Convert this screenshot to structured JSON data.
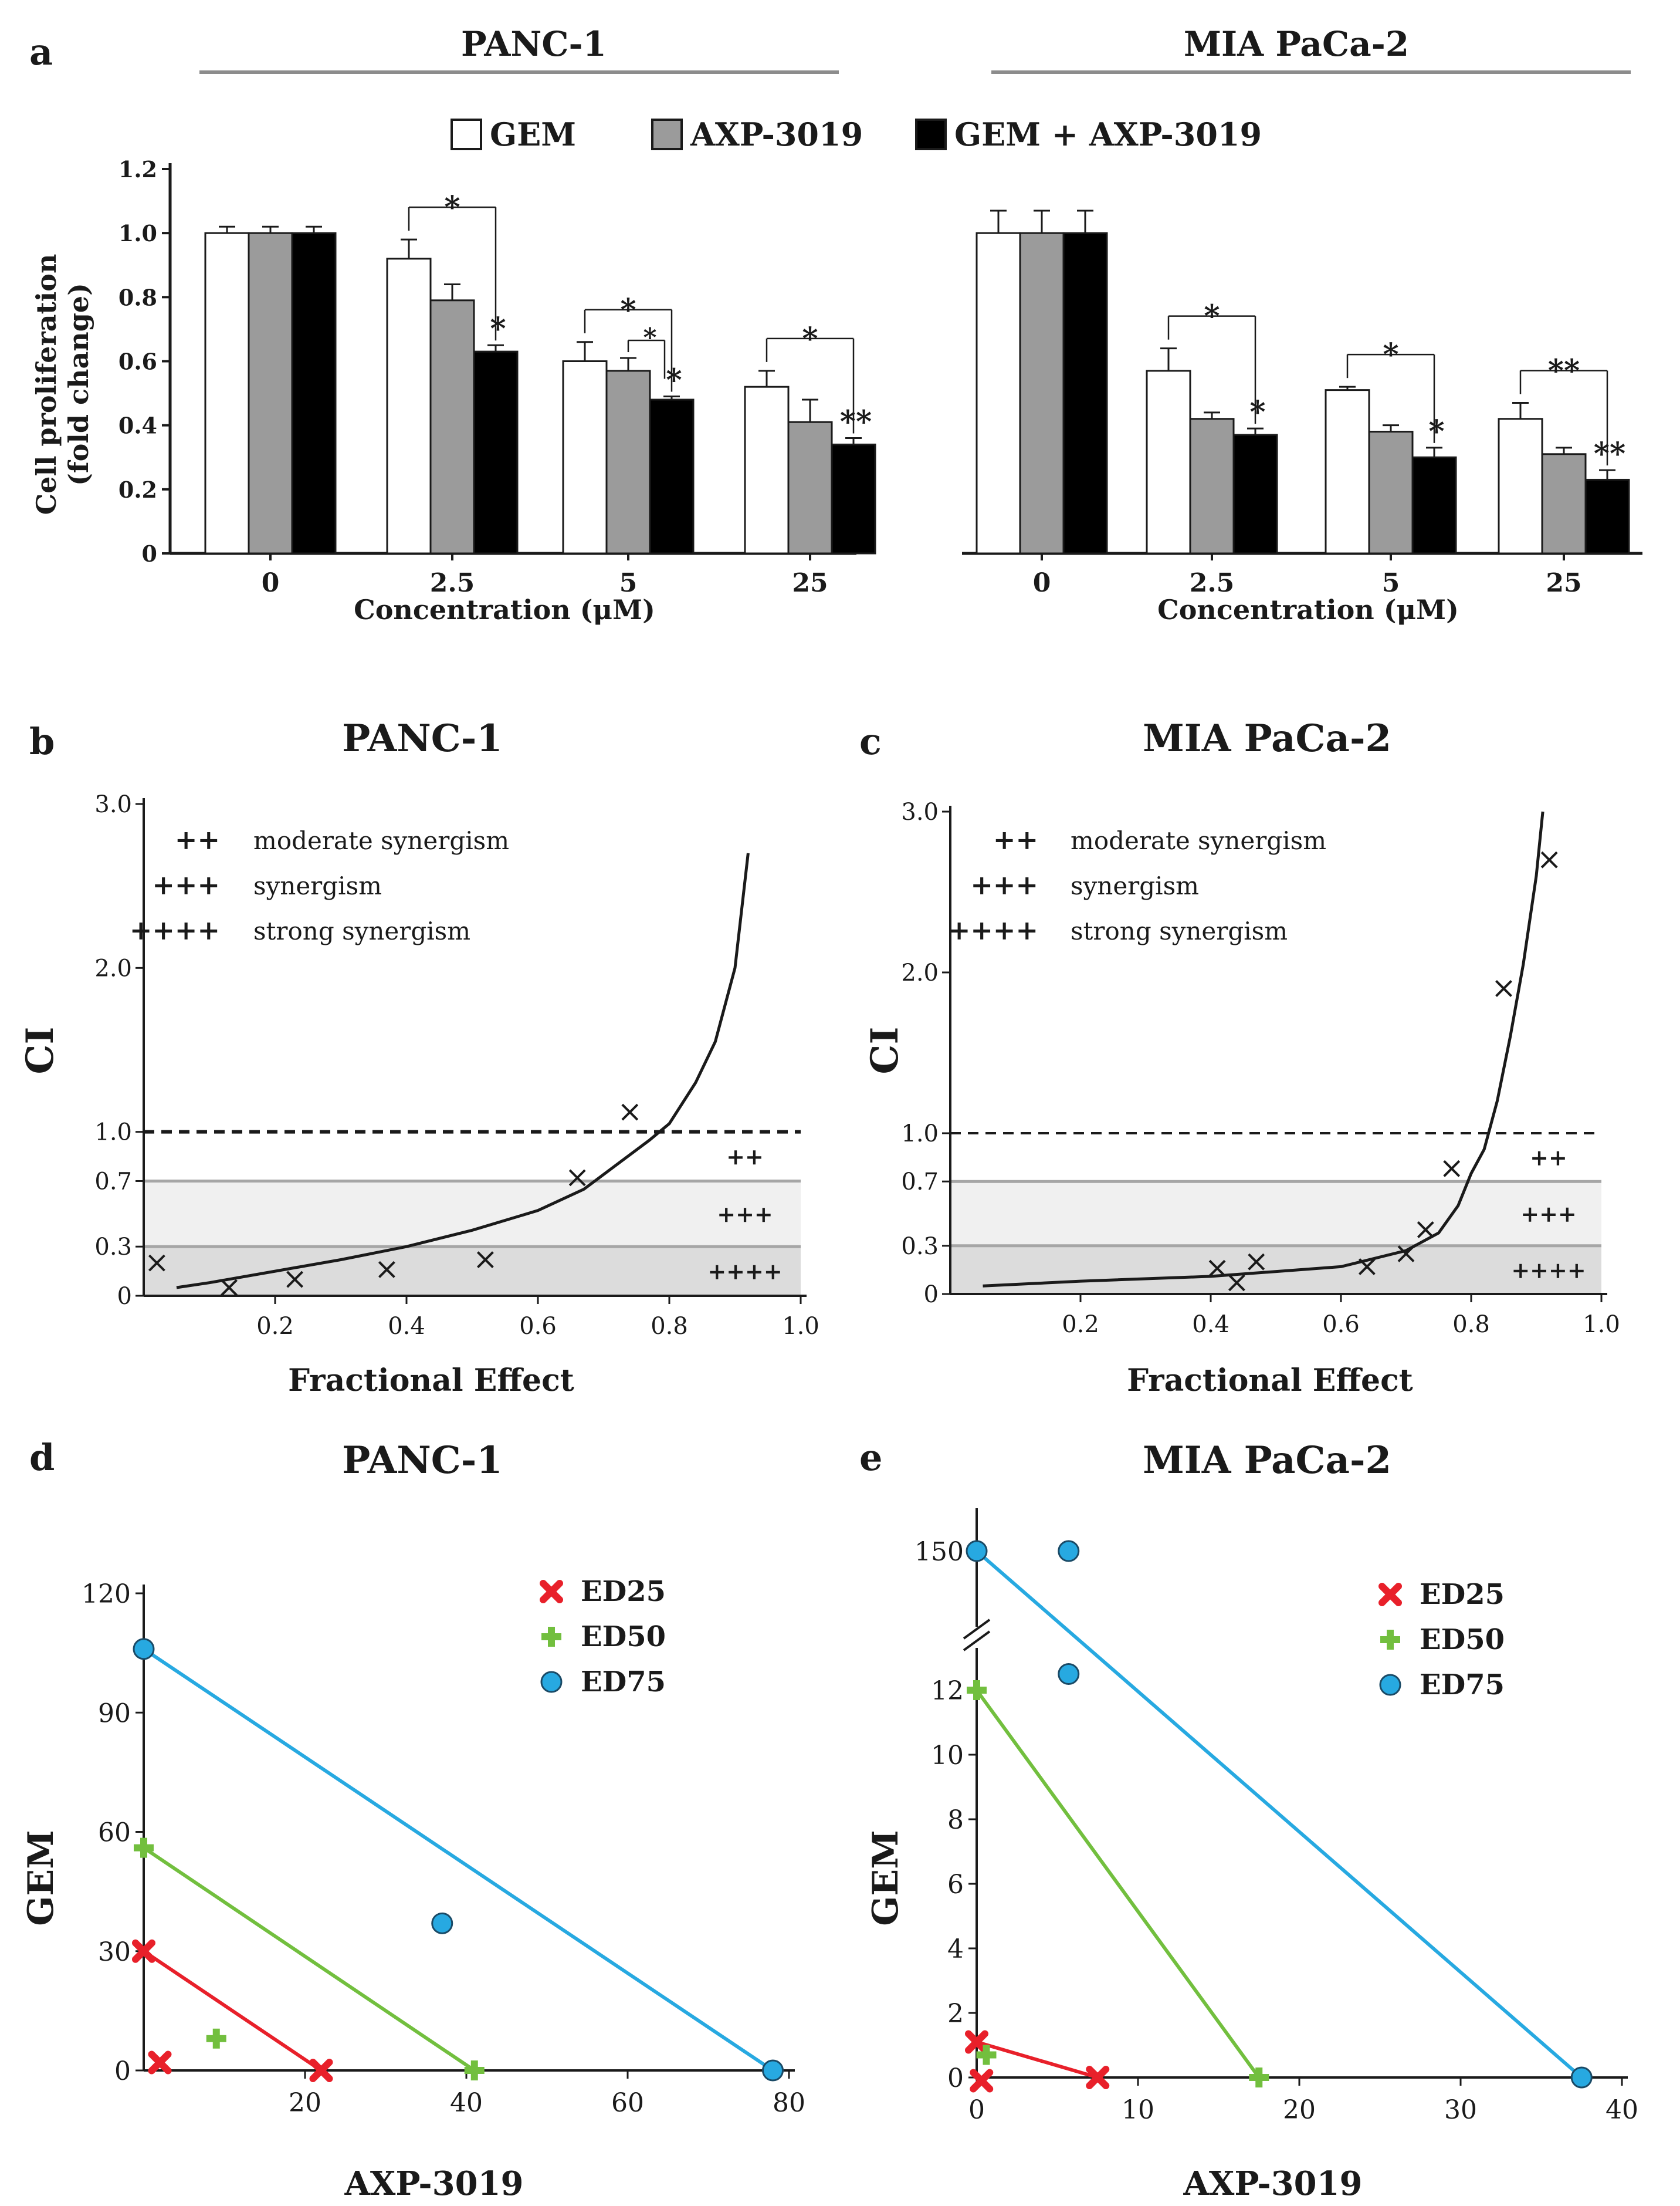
{
  "figure": {
    "colors": {
      "axis": "#1a1a1a",
      "bar_gem": "#ffffff",
      "bar_axp": "#9b9b9b",
      "bar_combo": "#000000",
      "header_rule": "#8c8c8c",
      "band_light": "#f0f0f0",
      "band_dark": "#dcdcdc",
      "band_line": "#a6a6a6",
      "red": "#e8202a",
      "green": "#72bf3e",
      "blue": "#27a9e1"
    },
    "panel_a": {
      "letter": "a",
      "legend": [
        "GEM",
        "AXP-3019",
        "GEM + AXP-3019"
      ],
      "ylabel": "Cell proliferation",
      "ylabel_sub": "(fold change)",
      "xlabel": "Concentration (μM)"
    },
    "panel_b": {
      "letter": "b"
    },
    "panel_c": {
      "letter": "c"
    },
    "panel_d": {
      "letter": "d"
    },
    "panel_e": {
      "letter": "e"
    }
  },
  "chart_data": [
    {
      "id": "a-panc1",
      "type": "bar",
      "title": "PANC-1",
      "categories": [
        "0",
        "2.5",
        "5",
        "25"
      ],
      "series": [
        {
          "name": "GEM",
          "values": [
            1.0,
            0.92,
            0.6,
            0.52
          ],
          "errors": [
            0.02,
            0.06,
            0.06,
            0.05
          ]
        },
        {
          "name": "AXP-3019",
          "values": [
            1.0,
            0.79,
            0.57,
            0.41
          ],
          "errors": [
            0.02,
            0.05,
            0.04,
            0.07
          ]
        },
        {
          "name": "GEM + AXP-3019",
          "values": [
            1.0,
            0.63,
            0.48,
            0.34
          ],
          "errors": [
            0.02,
            0.02,
            0.01,
            0.02
          ]
        }
      ],
      "ylim": [
        0,
        1.2
      ],
      "yticks": [
        "0",
        "0.2",
        "0.4",
        "0.6",
        "0.8",
        "1.0",
        "1.2"
      ],
      "ylabel": "Cell proliferation (fold change)",
      "xlabel": "Concentration (μM)",
      "significance": [
        {
          "category": "2.5",
          "label": "*",
          "combo": "*",
          "inner": null
        },
        {
          "category": "5",
          "label": "*",
          "combo": "*",
          "inner": "*"
        },
        {
          "category": "25",
          "label": "*",
          "combo": "**",
          "inner": null
        }
      ]
    },
    {
      "id": "a-mia",
      "type": "bar",
      "title": "MIA PaCa-2",
      "categories": [
        "0",
        "2.5",
        "5",
        "25"
      ],
      "series": [
        {
          "name": "GEM",
          "values": [
            1.0,
            0.57,
            0.51,
            0.42
          ],
          "errors": [
            0.07,
            0.07,
            0.01,
            0.05
          ]
        },
        {
          "name": "AXP-3019",
          "values": [
            1.0,
            0.42,
            0.38,
            0.31
          ],
          "errors": [
            0.07,
            0.02,
            0.02,
            0.02
          ]
        },
        {
          "name": "GEM + AXP-3019",
          "values": [
            1.0,
            0.37,
            0.3,
            0.23
          ],
          "errors": [
            0.07,
            0.02,
            0.03,
            0.03
          ]
        }
      ],
      "ylim": [
        0,
        1.2
      ],
      "xlabel": "Concentration (μM)",
      "significance": [
        {
          "category": "2.5",
          "label": "*",
          "combo": "*",
          "inner": null
        },
        {
          "category": "5",
          "label": "*",
          "combo": "*",
          "inner": null
        },
        {
          "category": "25",
          "label": "**",
          "combo": "**",
          "inner": null
        }
      ]
    },
    {
      "id": "b",
      "type": "line",
      "title": "PANC-1",
      "xlabel": "Fractional Effect",
      "ylabel": "CI",
      "xlim": [
        0,
        1.0
      ],
      "ylim": [
        0,
        3.0
      ],
      "xticks": [
        "0.2",
        "0.4",
        "0.6",
        "0.8",
        "1.0"
      ],
      "yticks": [
        {
          "v": 0,
          "t": "0",
          "red": false
        },
        {
          "v": 0.3,
          "t": "0.3",
          "red": true
        },
        {
          "v": 0.7,
          "t": "0.7",
          "red": true
        },
        {
          "v": 1.0,
          "t": "1.0",
          "red": false
        },
        {
          "v": 2.0,
          "t": "2.0",
          "red": false
        },
        {
          "v": 3.0,
          "t": "3.0",
          "red": false
        }
      ],
      "points": [
        [
          0.02,
          0.2
        ],
        [
          0.13,
          0.05
        ],
        [
          0.23,
          0.1
        ],
        [
          0.37,
          0.16
        ],
        [
          0.52,
          0.22
        ],
        [
          0.66,
          0.72
        ],
        [
          0.74,
          1.12
        ]
      ],
      "curve": [
        [
          0.05,
          0.05
        ],
        [
          0.1,
          0.08
        ],
        [
          0.2,
          0.15
        ],
        [
          0.3,
          0.22
        ],
        [
          0.4,
          0.3
        ],
        [
          0.5,
          0.4
        ],
        [
          0.6,
          0.52
        ],
        [
          0.67,
          0.65
        ],
        [
          0.72,
          0.8
        ],
        [
          0.77,
          0.95
        ],
        [
          0.8,
          1.05
        ],
        [
          0.84,
          1.3
        ],
        [
          0.87,
          1.55
        ],
        [
          0.9,
          2.0
        ],
        [
          0.92,
          2.7
        ]
      ],
      "threshold": 1.0,
      "bands": [
        0.3,
        0.7
      ],
      "legend": [
        {
          "symbol": "++",
          "label": "moderate synergism"
        },
        {
          "symbol": "+++",
          "label": "synergism"
        },
        {
          "symbol": "++++",
          "label": "strong synergism"
        }
      ],
      "band_marks": [
        "++",
        "+++",
        "++++"
      ]
    },
    {
      "id": "c",
      "type": "line",
      "title": "MIA PaCa-2",
      "xlabel": "Fractional Effect",
      "ylabel": "CI",
      "xlim": [
        0,
        1.0
      ],
      "ylim": [
        0,
        3.0
      ],
      "xticks": [
        "0.2",
        "0.4",
        "0.6",
        "0.8",
        "1.0"
      ],
      "yticks": [
        {
          "v": 0,
          "t": "0",
          "red": false
        },
        {
          "v": 0.3,
          "t": "0.3",
          "red": true
        },
        {
          "v": 0.7,
          "t": "0.7",
          "red": true
        },
        {
          "v": 1.0,
          "t": "1.0",
          "red": false
        },
        {
          "v": 2.0,
          "t": "2.0",
          "red": false
        },
        {
          "v": 3.0,
          "t": "3.0",
          "red": false
        }
      ],
      "points": [
        [
          0.41,
          0.16
        ],
        [
          0.44,
          0.07
        ],
        [
          0.47,
          0.2
        ],
        [
          0.64,
          0.17
        ],
        [
          0.7,
          0.25
        ],
        [
          0.73,
          0.4
        ],
        [
          0.77,
          0.78
        ],
        [
          0.85,
          1.9
        ],
        [
          0.92,
          2.7
        ]
      ],
      "curve": [
        [
          0.05,
          0.05
        ],
        [
          0.2,
          0.08
        ],
        [
          0.4,
          0.11
        ],
        [
          0.6,
          0.17
        ],
        [
          0.7,
          0.27
        ],
        [
          0.75,
          0.38
        ],
        [
          0.78,
          0.55
        ],
        [
          0.8,
          0.75
        ],
        [
          0.82,
          0.9
        ],
        [
          0.84,
          1.2
        ],
        [
          0.86,
          1.6
        ],
        [
          0.88,
          2.05
        ],
        [
          0.9,
          2.6
        ],
        [
          0.91,
          3.0
        ]
      ],
      "threshold": 1.0,
      "bands": [
        0.3,
        0.7
      ],
      "legend": [
        {
          "symbol": "++",
          "label": "moderate synergism"
        },
        {
          "symbol": "+++",
          "label": "synergism"
        },
        {
          "symbol": "++++",
          "label": "strong synergism"
        }
      ],
      "band_marks": [
        "++",
        "+++",
        "++++"
      ]
    },
    {
      "id": "d",
      "type": "scatter",
      "title": "PANC-1",
      "xlabel": "AXP-3019",
      "ylabel": "GEM",
      "xlim": [
        0,
        80
      ],
      "ylim": [
        0,
        120
      ],
      "xticks": [
        "20",
        "40",
        "60",
        "80"
      ],
      "yticks": [
        "0",
        "30",
        "60",
        "90",
        "120"
      ],
      "legend": [
        "ED25",
        "ED50",
        "ED75"
      ],
      "isobolograms": [
        {
          "name": "ED25",
          "line": [
            [
              0,
              30
            ],
            [
              22,
              0
            ]
          ],
          "points": [
            [
              2,
              2
            ]
          ]
        },
        {
          "name": "ED50",
          "line": [
            [
              0,
              56
            ],
            [
              41,
              0
            ]
          ],
          "points": [
            [
              9,
              8
            ]
          ]
        },
        {
          "name": "ED75",
          "line": [
            [
              0,
              106
            ],
            [
              78,
              0
            ]
          ],
          "points": [
            [
              37,
              37
            ]
          ]
        }
      ]
    },
    {
      "id": "e",
      "type": "scatter",
      "title": "MIA PaCa-2",
      "xlabel": "AXP-3019",
      "ylabel": "GEM",
      "xlim": [
        0,
        40
      ],
      "ylim": [
        0,
        12
      ],
      "y_break_top": 150,
      "xticks": [
        "0",
        "10",
        "20",
        "30",
        "40"
      ],
      "yticks": [
        "0",
        "2",
        "4",
        "6",
        "8",
        "10",
        "12",
        "150"
      ],
      "legend": [
        "ED25",
        "ED50",
        "ED75"
      ],
      "isobolograms": [
        {
          "name": "ED25",
          "line": [
            [
              0,
              1.1
            ],
            [
              7.5,
              0
            ]
          ],
          "points": [
            [
              0.3,
              -0.1
            ]
          ]
        },
        {
          "name": "ED50",
          "line": [
            [
              0,
              12
            ],
            [
              17.5,
              0
            ]
          ],
          "points": [
            [
              0.6,
              0.7
            ]
          ]
        },
        {
          "name": "ED75",
          "line": [
            [
              0,
              150
            ],
            [
              37.5,
              0
            ]
          ],
          "points": [
            [
              5.7,
              150
            ]
          ]
        }
      ],
      "break_notes": "ED75 point above axis break near y≈12.5 (displayed scale)"
    }
  ]
}
